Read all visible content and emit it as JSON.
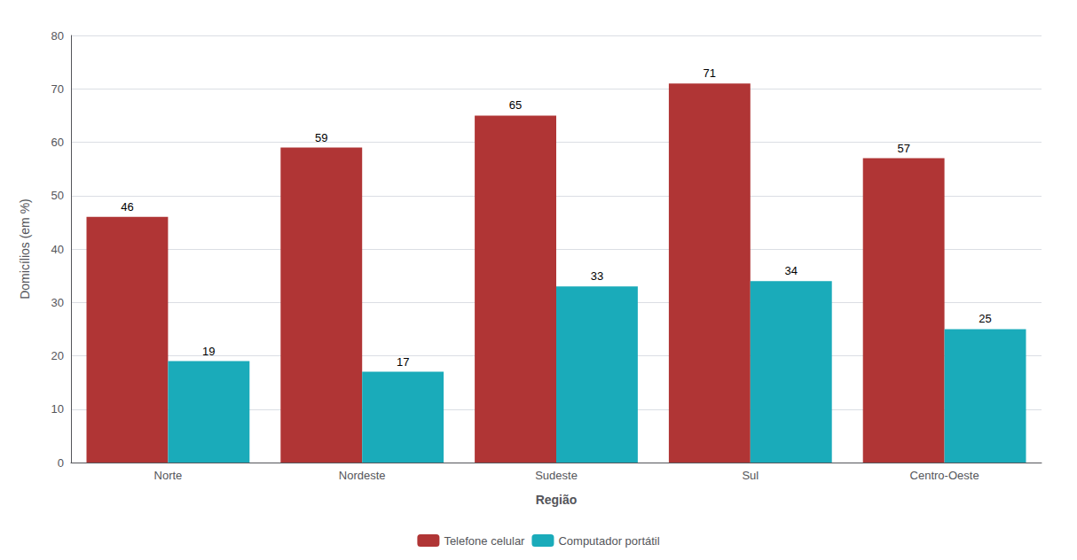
{
  "chart_data": {
    "type": "bar",
    "categories": [
      "Norte",
      "Nordeste",
      "Sudeste",
      "Sul",
      "Centro-Oeste"
    ],
    "series": [
      {
        "name": "Telefone celular",
        "color": "#B03535",
        "values": [
          46,
          59,
          65,
          71,
          57
        ]
      },
      {
        "name": "Computador portátil",
        "color": "#1AABBA",
        "values": [
          19,
          17,
          33,
          34,
          25
        ]
      }
    ],
    "xlabel": "Região",
    "ylabel": "Domicílios (em %)",
    "ylim": [
      0,
      80
    ],
    "yticks": [
      0,
      10,
      20,
      30,
      40,
      50,
      60,
      70,
      80
    ],
    "grid": true,
    "legend": "bottom",
    "data_labels": true
  }
}
